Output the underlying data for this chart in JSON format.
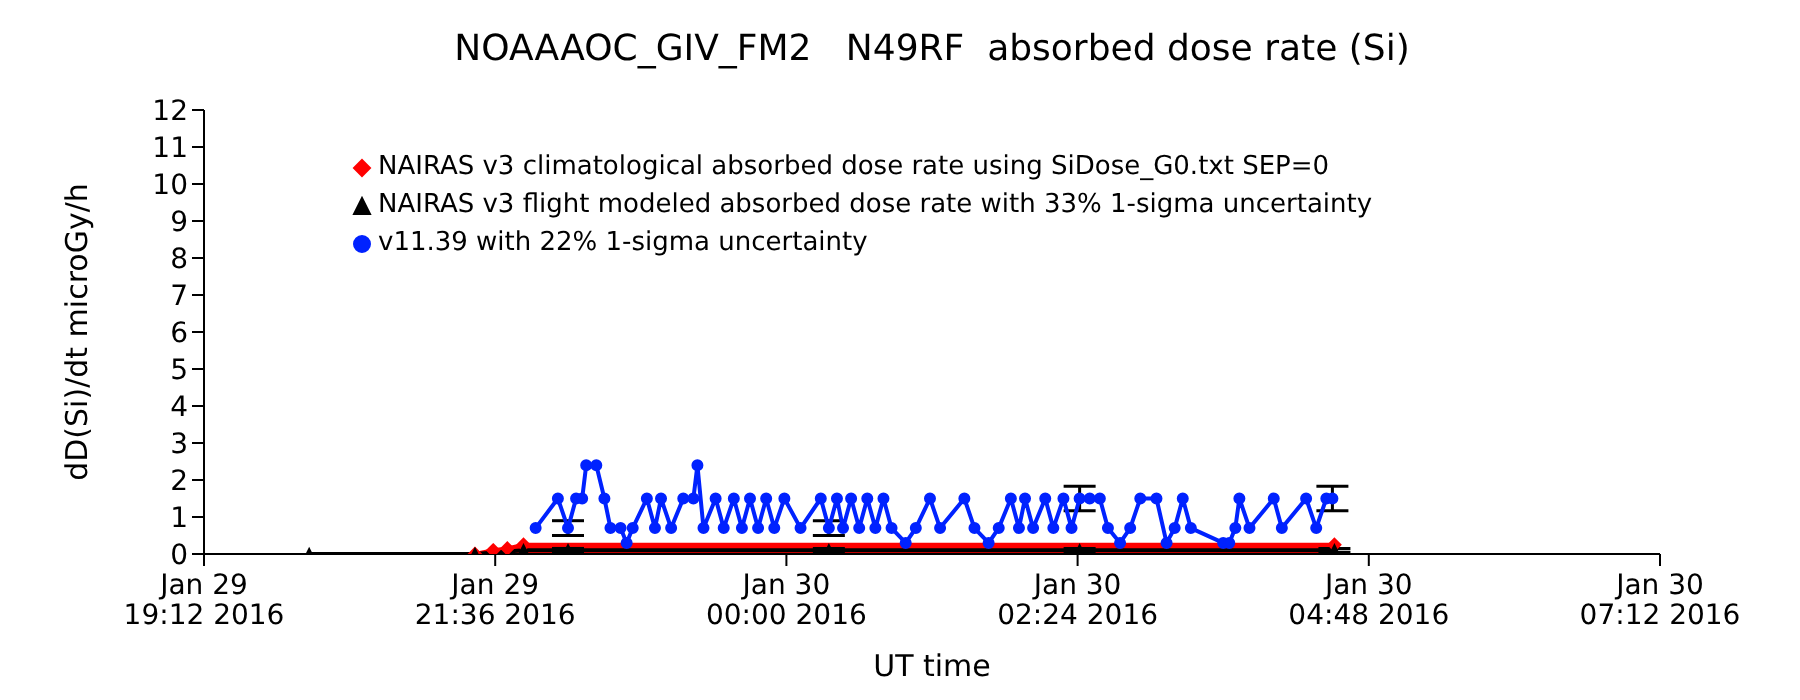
{
  "chart_data": {
    "type": "line",
    "title": "NOAAAOC_GIV_FM2   N49RF  absorbed dose rate (Si)",
    "xlabel": "UT time",
    "ylabel": "dD(Si)/dt microGy/h",
    "xlim": [
      "2016-01-29T19:12",
      "2016-01-30T07:12"
    ],
    "xticks": [
      {
        "value": "2016-01-29T19:12",
        "label": "Jan 29\n19:12 2016"
      },
      {
        "value": "2016-01-29T21:36",
        "label": "Jan 29\n21:36 2016"
      },
      {
        "value": "2016-01-30T00:00",
        "label": "Jan 30\n00:00 2016"
      },
      {
        "value": "2016-01-30T02:24",
        "label": "Jan 30\n02:24 2016"
      },
      {
        "value": "2016-01-30T04:48",
        "label": "Jan 30\n04:48 2016"
      },
      {
        "value": "2016-01-30T07:12",
        "label": "Jan 30\n07:12 2016"
      }
    ],
    "ylim": [
      0,
      12
    ],
    "yticks": [
      0,
      1,
      2,
      3,
      4,
      5,
      6,
      7,
      8,
      9,
      10,
      11,
      12
    ],
    "legend": "top left",
    "series": [
      {
        "name": "NAIRAS v3 climatological absorbed dose rate using SiDose_G0.txt SEP=0",
        "type": "area",
        "color": "#ff0000",
        "marker": "diamond",
        "x": [
          "2016-01-29T21:26",
          "2016-01-29T21:35",
          "2016-01-29T21:42",
          "2016-01-29T21:50",
          "2016-01-30T04:31"
        ],
        "values": [
          0,
          0.1,
          0.15,
          0.25,
          0.25
        ]
      },
      {
        "name": "NAIRAS v3 flight modeled absorbed dose rate with 33% 1-sigma uncertainty",
        "color": "#000000",
        "marker": "triangle",
        "x": [
          "2016-01-29T20:04",
          "2016-01-29T21:26",
          "2016-01-29T21:50",
          "2016-01-29T22:12",
          "2016-01-30T00:21",
          "2016-01-30T02:25",
          "2016-01-30T04:31"
        ],
        "values": [
          0,
          0,
          0.1,
          0.1,
          0.1,
          0.1,
          0.1
        ],
        "errors": [
          null,
          null,
          null,
          0.05,
          0.05,
          0.05,
          0.05
        ]
      },
      {
        "name": "v11.39 with 22% 1-sigma uncertainty",
        "color": "#0022ff",
        "marker": "circle",
        "x": [
          "2016-01-29T21:56",
          "2016-01-29T22:07",
          "2016-01-29T22:12",
          "2016-01-29T22:16",
          "2016-01-29T22:19",
          "2016-01-29T22:21",
          "2016-01-29T22:26",
          "2016-01-29T22:30",
          "2016-01-29T22:33",
          "2016-01-29T22:38",
          "2016-01-29T22:41",
          "2016-01-29T22:44",
          "2016-01-29T22:51",
          "2016-01-29T22:55",
          "2016-01-29T22:58",
          "2016-01-29T23:03",
          "2016-01-29T23:09",
          "2016-01-29T23:14",
          "2016-01-29T23:16",
          "2016-01-29T23:19",
          "2016-01-29T23:25",
          "2016-01-29T23:29",
          "2016-01-29T23:34",
          "2016-01-29T23:38",
          "2016-01-29T23:42",
          "2016-01-29T23:46",
          "2016-01-29T23:50",
          "2016-01-29T23:54",
          "2016-01-29T23:59",
          "2016-01-30T00:07",
          "2016-01-30T00:17",
          "2016-01-30T00:21",
          "2016-01-30T00:25",
          "2016-01-30T00:28",
          "2016-01-30T00:32",
          "2016-01-30T00:36",
          "2016-01-30T00:40",
          "2016-01-30T00:44",
          "2016-01-30T00:48",
          "2016-01-30T00:52",
          "2016-01-30T00:59",
          "2016-01-30T01:04",
          "2016-01-30T01:11",
          "2016-01-30T01:16",
          "2016-01-30T01:28",
          "2016-01-30T01:33",
          "2016-01-30T01:40",
          "2016-01-30T01:45",
          "2016-01-30T01:51",
          "2016-01-30T01:55",
          "2016-01-30T01:58",
          "2016-01-30T02:02",
          "2016-01-30T02:08",
          "2016-01-30T02:12",
          "2016-01-30T02:17",
          "2016-01-30T02:21",
          "2016-01-30T02:25",
          "2016-01-30T02:30",
          "2016-01-30T02:35",
          "2016-01-30T02:39",
          "2016-01-30T02:45",
          "2016-01-30T02:50",
          "2016-01-30T02:55",
          "2016-01-30T03:03",
          "2016-01-30T03:08",
          "2016-01-30T03:12",
          "2016-01-30T03:16",
          "2016-01-30T03:20",
          "2016-01-30T03:36",
          "2016-01-30T03:39",
          "2016-01-30T03:42",
          "2016-01-30T03:44",
          "2016-01-30T03:49",
          "2016-01-30T04:01",
          "2016-01-30T04:05",
          "2016-01-30T04:17",
          "2016-01-30T04:22",
          "2016-01-30T04:27",
          "2016-01-30T04:30"
        ],
        "values": [
          0.7,
          1.5,
          0.7,
          1.5,
          1.5,
          2.4,
          2.4,
          1.5,
          0.7,
          0.7,
          0.3,
          0.7,
          1.5,
          0.7,
          1.5,
          0.7,
          1.5,
          1.5,
          2.4,
          0.7,
          1.5,
          0.7,
          1.5,
          0.7,
          1.5,
          0.7,
          1.5,
          0.7,
          1.5,
          0.7,
          1.5,
          0.7,
          1.5,
          0.7,
          1.5,
          0.7,
          1.5,
          0.7,
          1.5,
          0.7,
          0.3,
          0.7,
          1.5,
          0.7,
          1.5,
          0.7,
          0.3,
          0.7,
          1.5,
          0.7,
          1.5,
          0.7,
          1.5,
          0.7,
          1.5,
          0.7,
          1.5,
          1.5,
          1.5,
          0.7,
          0.3,
          0.7,
          1.5,
          1.5,
          0.3,
          0.7,
          1.5,
          0.7,
          0.3,
          0.3,
          0.7,
          1.5,
          0.7,
          1.5,
          0.7,
          1.5,
          0.7,
          1.5,
          1.5
        ],
        "errors": [
          null,
          null,
          0.2,
          null,
          null,
          null,
          null,
          null,
          null,
          null,
          null,
          null,
          null,
          null,
          null,
          null,
          null,
          null,
          null,
          null,
          null,
          null,
          null,
          null,
          null,
          null,
          null,
          null,
          null,
          null,
          null,
          0.2,
          null,
          null,
          null,
          null,
          null,
          null,
          null,
          null,
          null,
          null,
          null,
          null,
          null,
          null,
          null,
          null,
          null,
          null,
          null,
          null,
          null,
          null,
          null,
          null,
          0.33,
          null,
          null,
          null,
          null,
          null,
          null,
          null,
          null,
          null,
          null,
          null,
          null,
          null,
          null,
          null,
          null,
          null,
          null,
          null,
          null,
          null,
          0.33
        ]
      }
    ]
  }
}
